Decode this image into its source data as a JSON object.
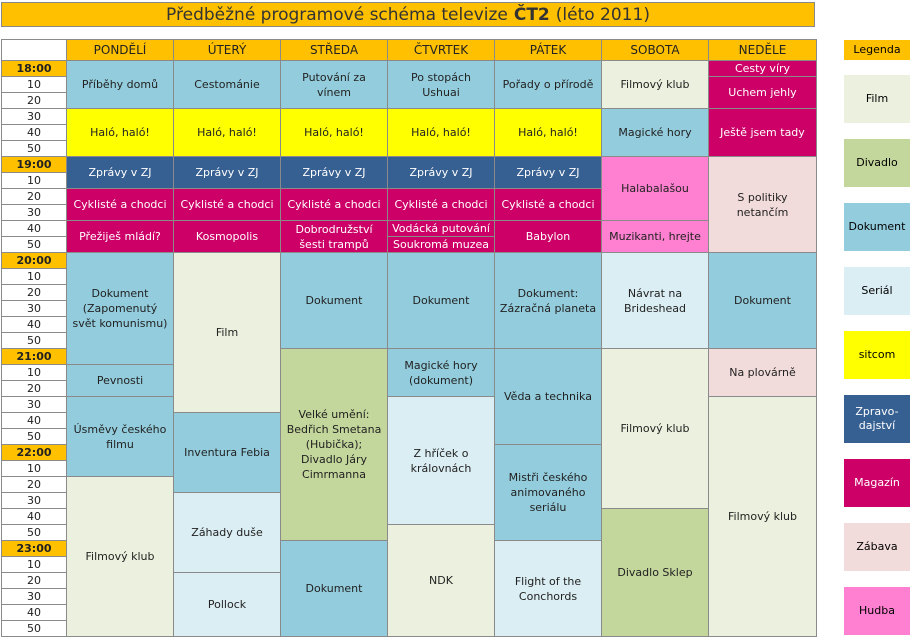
{
  "title": {
    "pre": "Předběžné programové schéma televize",
    "bold": "ČT2",
    "post": "(léto 2011)"
  },
  "days": [
    "PONDĚLÍ",
    "ÚTERÝ",
    "STŘEDA",
    "ČTVRTEK",
    "PÁTEK",
    "SOBOTA",
    "NEDĚLE"
  ],
  "times": [
    "18:00",
    "10",
    "20",
    "30",
    "40",
    "50",
    "19:00",
    "10",
    "20",
    "30",
    "40",
    "50",
    "20:00",
    "10",
    "20",
    "30",
    "40",
    "50",
    "21:00",
    "10",
    "20",
    "30",
    "40",
    "50",
    "22:00",
    "10",
    "20",
    "30",
    "40",
    "50",
    "23:00",
    "10",
    "20",
    "30",
    "40",
    "50"
  ],
  "legend_title": "Legenda",
  "legend": [
    {
      "label": "Film",
      "color": "#ebf1de"
    },
    {
      "label": "Divadlo",
      "color": "#c3d69b"
    },
    {
      "label": "Dokument",
      "color": "#93cddd"
    },
    {
      "label": "Seriál",
      "color": "#dbeef4"
    },
    {
      "label": "sitcom",
      "color": "#ffff00"
    },
    {
      "label": "Zpravo-dajství",
      "color": "#376092"
    },
    {
      "label": "Magazín",
      "color": "#cc0066"
    },
    {
      "label": "Zábava",
      "color": "#f2dcdb"
    },
    {
      "label": "Hudba",
      "color": "#ff80d0"
    }
  ],
  "programs": [
    {
      "day": 0,
      "start": 0,
      "len": 3,
      "text": "Příběhy domů",
      "cat": "dok"
    },
    {
      "day": 1,
      "start": 0,
      "len": 3,
      "text": "Cestománie",
      "cat": "dok"
    },
    {
      "day": 2,
      "start": 0,
      "len": 3,
      "text": "Putování za vínem",
      "cat": "dok"
    },
    {
      "day": 3,
      "start": 0,
      "len": 3,
      "text": "Po stopách Ushuai",
      "cat": "dok"
    },
    {
      "day": 4,
      "start": 0,
      "len": 3,
      "text": "Pořady o přírodě",
      "cat": "dok"
    },
    {
      "day": 5,
      "start": 0,
      "len": 3,
      "text": "Filmový klub",
      "cat": "film"
    },
    {
      "day": 6,
      "start": 0,
      "len": 1,
      "text": "Cesty víry",
      "cat": "mag"
    },
    {
      "day": 6,
      "start": 1,
      "len": 2,
      "text": "Uchem jehly",
      "cat": "mag"
    },
    {
      "day": 0,
      "start": 3,
      "len": 3,
      "text": "Haló, haló!",
      "cat": "sit"
    },
    {
      "day": 1,
      "start": 3,
      "len": 3,
      "text": "Haló, haló!",
      "cat": "sit"
    },
    {
      "day": 2,
      "start": 3,
      "len": 3,
      "text": "Haló, haló!",
      "cat": "sit"
    },
    {
      "day": 3,
      "start": 3,
      "len": 3,
      "text": "Haló, haló!",
      "cat": "sit"
    },
    {
      "day": 4,
      "start": 3,
      "len": 3,
      "text": "Haló, haló!",
      "cat": "sit"
    },
    {
      "day": 5,
      "start": 3,
      "len": 3,
      "text": "Magické hory",
      "cat": "dok"
    },
    {
      "day": 6,
      "start": 3,
      "len": 3,
      "text": "Ještě jsem tady",
      "cat": "mag"
    },
    {
      "day": 0,
      "start": 6,
      "len": 2,
      "text": "Zprávy v ZJ",
      "cat": "zpr"
    },
    {
      "day": 1,
      "start": 6,
      "len": 2,
      "text": "Zprávy v ZJ",
      "cat": "zpr"
    },
    {
      "day": 2,
      "start": 6,
      "len": 2,
      "text": "Zprávy v ZJ",
      "cat": "zpr"
    },
    {
      "day": 3,
      "start": 6,
      "len": 2,
      "text": "Zprávy v ZJ",
      "cat": "zpr"
    },
    {
      "day": 4,
      "start": 6,
      "len": 2,
      "text": "Zprávy v ZJ",
      "cat": "zpr"
    },
    {
      "day": 5,
      "start": 6,
      "len": 4,
      "text": "Halabalašou",
      "cat": "hud"
    },
    {
      "day": 6,
      "start": 6,
      "len": 6,
      "text": "S politiky netančím",
      "cat": "zab"
    },
    {
      "day": 0,
      "start": 8,
      "len": 2,
      "text": "Cyklisté a chodci",
      "cat": "mag"
    },
    {
      "day": 1,
      "start": 8,
      "len": 2,
      "text": "Cyklisté a chodci",
      "cat": "mag"
    },
    {
      "day": 2,
      "start": 8,
      "len": 2,
      "text": "Cyklisté a chodci",
      "cat": "mag"
    },
    {
      "day": 3,
      "start": 8,
      "len": 2,
      "text": "Cyklisté a chodci",
      "cat": "mag"
    },
    {
      "day": 4,
      "start": 8,
      "len": 2,
      "text": "Cyklisté a chodci",
      "cat": "mag"
    },
    {
      "day": 0,
      "start": 10,
      "len": 2,
      "text": "Přežiješ mládí?",
      "cat": "mag"
    },
    {
      "day": 1,
      "start": 10,
      "len": 2,
      "text": "Kosmopolis",
      "cat": "mag"
    },
    {
      "day": 2,
      "start": 10,
      "len": 2,
      "text": "Dobrodružství šesti trampů",
      "cat": "mag"
    },
    {
      "day": 3,
      "start": 10,
      "len": 1,
      "text": "Vodácká putování",
      "cat": "mag"
    },
    {
      "day": 3,
      "start": 11,
      "len": 1,
      "text": "Soukromá muzea",
      "cat": "mag"
    },
    {
      "day": 4,
      "start": 10,
      "len": 2,
      "text": "Babylon",
      "cat": "mag"
    },
    {
      "day": 5,
      "start": 10,
      "len": 2,
      "text": "Muzikanti, hrejte",
      "cat": "hud"
    },
    {
      "day": 0,
      "start": 12,
      "len": 7,
      "text": "Dokument (Zapomenutý svět komunismu)",
      "cat": "dok"
    },
    {
      "day": 1,
      "start": 12,
      "len": 10,
      "text": "Film",
      "cat": "film"
    },
    {
      "day": 2,
      "start": 12,
      "len": 6,
      "text": "Dokument",
      "cat": "dok"
    },
    {
      "day": 3,
      "start": 12,
      "len": 6,
      "text": "Dokument",
      "cat": "dok"
    },
    {
      "day": 4,
      "start": 12,
      "len": 6,
      "text": "Dokument: Zázračná planeta",
      "cat": "dok"
    },
    {
      "day": 5,
      "start": 12,
      "len": 6,
      "text": "Návrat na Brideshead",
      "cat": "ser"
    },
    {
      "day": 6,
      "start": 12,
      "len": 6,
      "text": "Dokument",
      "cat": "dok"
    },
    {
      "day": 0,
      "start": 19,
      "len": 2,
      "text": "Pevnosti",
      "cat": "dok"
    },
    {
      "day": 0,
      "start": 21,
      "len": 5,
      "text": "Úsměvy českého filmu",
      "cat": "dok"
    },
    {
      "day": 0,
      "start": 26,
      "len": 10,
      "text": "Filmový klub",
      "cat": "film"
    },
    {
      "day": 1,
      "start": 22,
      "len": 5,
      "text": "Inventura Febia",
      "cat": "dok"
    },
    {
      "day": 1,
      "start": 27,
      "len": 5,
      "text": "Záhady duše",
      "cat": "ser"
    },
    {
      "day": 1,
      "start": 32,
      "len": 4,
      "text": "Pollock",
      "cat": "ser"
    },
    {
      "day": 2,
      "start": 18,
      "len": 12,
      "text": "Velké umění: Bedřich Smetana (Hubička); Divadlo Járy Cimrmanna",
      "cat": "div"
    },
    {
      "day": 2,
      "start": 30,
      "len": 6,
      "text": "Dokument",
      "cat": "dok"
    },
    {
      "day": 3,
      "start": 18,
      "len": 3,
      "text": "Magické hory (dokument)",
      "cat": "dok"
    },
    {
      "day": 3,
      "start": 21,
      "len": 8,
      "text": "Z hříček o královnách",
      "cat": "ser"
    },
    {
      "day": 3,
      "start": 29,
      "len": 7,
      "text": "NDK",
      "cat": "film"
    },
    {
      "day": 4,
      "start": 18,
      "len": 6,
      "text": "Věda a technika",
      "cat": "dok"
    },
    {
      "day": 4,
      "start": 24,
      "len": 6,
      "text": "Mistři českého animovaného seriálu",
      "cat": "dok"
    },
    {
      "day": 4,
      "start": 30,
      "len": 6,
      "text": "Flight of the Conchords",
      "cat": "ser"
    },
    {
      "day": 5,
      "start": 18,
      "len": 10,
      "text": "Filmový klub",
      "cat": "film"
    },
    {
      "day": 5,
      "start": 28,
      "len": 8,
      "text": "Divadlo Sklep",
      "cat": "div"
    },
    {
      "day": 6,
      "start": 18,
      "len": 3,
      "text": "Na plovárně",
      "cat": "zab"
    },
    {
      "day": 6,
      "start": 21,
      "len": 15,
      "text": "Filmový klub",
      "cat": "film"
    }
  ]
}
